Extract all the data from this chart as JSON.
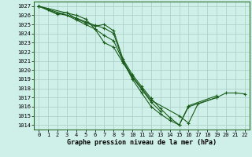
{
  "background_color": "#cef0e8",
  "grid_color": "#a8ccc4",
  "line_color": "#1a5c1a",
  "marker_color": "#1a5c1a",
  "xlabel": "Graphe pression niveau de la mer (hPa)",
  "xlabel_fontsize": 6.0,
  "tick_fontsize": 5.0,
  "ylim": [
    1013.5,
    1027.5
  ],
  "xlim": [
    -0.5,
    22.5
  ],
  "yticks": [
    1014,
    1015,
    1016,
    1017,
    1018,
    1019,
    1020,
    1021,
    1022,
    1023,
    1024,
    1025,
    1026,
    1027
  ],
  "xticks": [
    0,
    1,
    2,
    3,
    4,
    5,
    6,
    7,
    8,
    9,
    10,
    11,
    12,
    13,
    14,
    15,
    16,
    17,
    18,
    19,
    20,
    21,
    22
  ],
  "series_exact": [
    {
      "x": [
        0,
        1,
        2,
        3,
        4,
        5,
        6,
        7,
        8,
        9,
        10,
        11,
        12,
        15,
        16,
        17,
        19,
        20,
        21,
        22
      ],
      "y": [
        1027.0,
        1026.6,
        1026.2,
        1026.0,
        1025.7,
        1025.3,
        1024.9,
        1024.6,
        1024.0,
        1021.0,
        1019.3,
        1018.0,
        1016.7,
        1015.0,
        1014.2,
        1016.3,
        1017.0,
        1017.5,
        1017.5,
        1017.4
      ]
    },
    {
      "x": [
        0,
        2,
        3,
        4,
        5,
        6,
        7,
        8,
        9,
        10,
        11,
        12,
        13,
        14,
        15,
        16,
        19
      ],
      "y": [
        1027.0,
        1026.1,
        1026.3,
        1025.6,
        1025.2,
        1024.8,
        1025.0,
        1024.3,
        1021.2,
        1019.5,
        1018.2,
        1016.9,
        1015.8,
        1014.8,
        1014.0,
        1016.1,
        1017.2
      ]
    },
    {
      "x": [
        0,
        3,
        4,
        5,
        6,
        7,
        8,
        9,
        10,
        11,
        12,
        13
      ],
      "y": [
        1027.0,
        1026.0,
        1025.5,
        1025.0,
        1024.5,
        1023.0,
        1022.5,
        1020.8,
        1019.2,
        1017.9,
        1016.5,
        1015.5
      ]
    },
    {
      "x": [
        0,
        4,
        5,
        6,
        7,
        8,
        9,
        10,
        11,
        12,
        13,
        14,
        15,
        16,
        19
      ],
      "y": [
        1027.0,
        1026.0,
        1025.6,
        1024.5,
        1023.8,
        1023.2,
        1021.0,
        1019.0,
        1017.5,
        1016.0,
        1015.2,
        1014.5,
        1014.0,
        1016.0,
        1017.0
      ]
    }
  ]
}
